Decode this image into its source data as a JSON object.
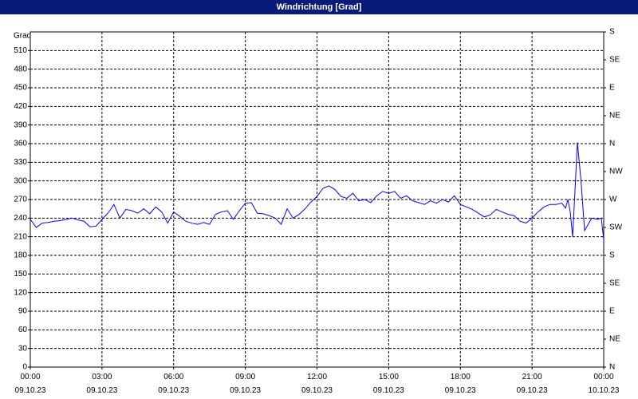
{
  "chart_data": {
    "type": "line",
    "title": "Windrichtung [Grad]",
    "y_label": "Grad",
    "color": "#0000ff",
    "grid": true,
    "xlim": [
      0,
      24
    ],
    "xticks": [
      {
        "value": 0,
        "label": "00:00\n09.10.23"
      },
      {
        "value": 3,
        "label": "03:00\n09.10.23"
      },
      {
        "value": 6,
        "label": "06:00\n09.10.23"
      },
      {
        "value": 9,
        "label": "09:00\n09.10.23"
      },
      {
        "value": 12,
        "label": "12:00\n09.10.23"
      },
      {
        "value": 15,
        "label": "15:00\n09.10.23"
      },
      {
        "value": 18,
        "label": "18:00\n09.10.23"
      },
      {
        "value": 21,
        "label": "21:00\n09.10.23"
      },
      {
        "value": 24,
        "label": "00:00\n10.10.23"
      }
    ],
    "ylim": [
      0,
      540
    ],
    "yticks": [
      0,
      30,
      60,
      90,
      120,
      150,
      180,
      210,
      240,
      270,
      300,
      330,
      360,
      390,
      420,
      450,
      480,
      510
    ],
    "y2lim": [
      0,
      540
    ],
    "y2ticks": [
      {
        "value": 0,
        "label": "N"
      },
      {
        "value": 45,
        "label": "NE"
      },
      {
        "value": 90,
        "label": "E"
      },
      {
        "value": 135,
        "label": "SE"
      },
      {
        "value": 180,
        "label": "S"
      },
      {
        "value": 225,
        "label": "SW"
      },
      {
        "value": 270,
        "label": "W"
      },
      {
        "value": 315,
        "label": "NW"
      },
      {
        "value": 360,
        "label": "N"
      },
      {
        "value": 405,
        "label": "NE"
      },
      {
        "value": 450,
        "label": "E"
      },
      {
        "value": 495,
        "label": "SE"
      },
      {
        "value": 540,
        "label": "S"
      }
    ],
    "x": [
      0,
      0.25,
      0.5,
      0.75,
      1,
      1.25,
      1.5,
      1.75,
      2,
      2.25,
      2.5,
      2.75,
      3,
      3.25,
      3.5,
      3.75,
      4,
      4.25,
      4.5,
      4.75,
      5,
      5.25,
      5.5,
      5.75,
      6,
      6.25,
      6.5,
      6.75,
      7,
      7.25,
      7.5,
      7.75,
      8,
      8.25,
      8.5,
      8.75,
      9,
      9.25,
      9.5,
      9.75,
      10,
      10.25,
      10.5,
      10.75,
      11,
      11.25,
      11.5,
      11.75,
      12,
      12.25,
      12.5,
      12.75,
      13,
      13.25,
      13.5,
      13.75,
      14,
      14.25,
      14.5,
      14.75,
      15,
      15.25,
      15.5,
      15.75,
      16,
      16.25,
      16.5,
      16.75,
      17,
      17.25,
      17.5,
      17.75,
      18,
      18.25,
      18.5,
      18.75,
      19,
      19.25,
      19.5,
      19.75,
      20,
      20.25,
      20.5,
      20.75,
      21,
      21.25,
      21.5,
      21.75,
      22,
      22.25,
      22.4,
      22.5,
      22.6,
      22.7,
      22.9,
      23.05,
      23.2,
      23.5,
      23.75,
      23.9,
      24
    ],
    "values": [
      238,
      225,
      232,
      233,
      235,
      236,
      238,
      240,
      237,
      235,
      226,
      227,
      238,
      248,
      262,
      240,
      254,
      252,
      248,
      255,
      247,
      258,
      250,
      232,
      250,
      243,
      235,
      232,
      230,
      233,
      230,
      246,
      250,
      252,
      238,
      252,
      264,
      265,
      248,
      247,
      244,
      240,
      230,
      255,
      240,
      246,
      255,
      266,
      275,
      288,
      292,
      286,
      275,
      272,
      280,
      268,
      270,
      265,
      276,
      283,
      280,
      283,
      272,
      276,
      268,
      265,
      262,
      268,
      264,
      270,
      266,
      276,
      262,
      258,
      254,
      248,
      242,
      245,
      254,
      250,
      246,
      244,
      235,
      232,
      240,
      250,
      258,
      262,
      262,
      264,
      256,
      270,
      250,
      210,
      362,
      300,
      220,
      240,
      238,
      240,
      205
    ]
  }
}
